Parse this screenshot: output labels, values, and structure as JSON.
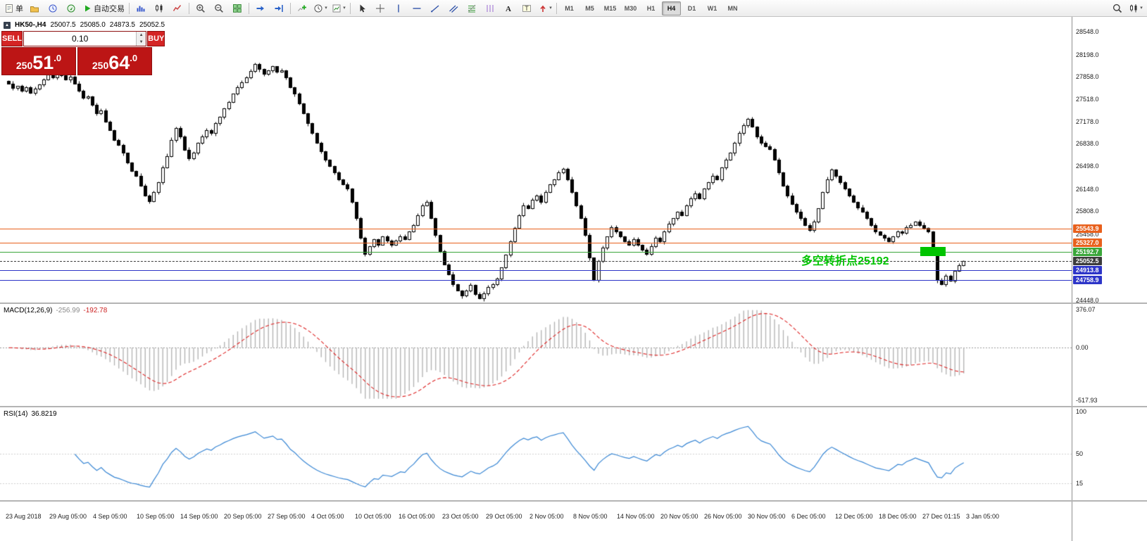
{
  "toolbar": {
    "items": [
      {
        "name": "new-order",
        "icon": "order",
        "label": "单"
      },
      {
        "name": "profiles",
        "icon": "profiles"
      },
      {
        "name": "market-watch",
        "icon": "market-watch"
      },
      {
        "name": "navigator",
        "icon": "navigator"
      },
      {
        "name": "autotrading",
        "icon": "play",
        "label": "自动交易"
      },
      {
        "sep": true
      },
      {
        "name": "bar-chart",
        "icon": "bars"
      },
      {
        "name": "candlestick-chart",
        "icon": "candles"
      },
      {
        "name": "line-chart",
        "icon": "line"
      },
      {
        "sep": true
      },
      {
        "name": "zoom-in",
        "icon": "zoom-in"
      },
      {
        "name": "zoom-out",
        "icon": "zoom-out"
      },
      {
        "name": "tile-windows",
        "icon": "tile"
      },
      {
        "sep": true
      },
      {
        "name": "auto-scroll",
        "icon": "auto-scroll"
      },
      {
        "name": "chart-shift",
        "icon": "chart-shift"
      },
      {
        "sep": true
      },
      {
        "name": "indicators-list",
        "icon": "indicator-add"
      },
      {
        "name": "periods",
        "icon": "clock",
        "dropdown": true
      },
      {
        "name": "templates",
        "icon": "template",
        "dropdown": true
      },
      {
        "sep": true
      },
      {
        "name": "cursor",
        "icon": "cursor"
      },
      {
        "name": "crosshair",
        "icon": "crosshair"
      },
      {
        "name": "vertical-line",
        "icon": "vline"
      },
      {
        "name": "horizontal-line",
        "icon": "hline"
      },
      {
        "name": "trendline",
        "icon": "trendline"
      },
      {
        "name": "equidistant-channel",
        "icon": "channel"
      },
      {
        "name": "fibonacci-retracement",
        "icon": "fibonacci"
      },
      {
        "name": "cycle-lines",
        "icon": "cycles"
      },
      {
        "name": "text",
        "icon": "text-a"
      },
      {
        "name": "text-label",
        "icon": "text-t"
      },
      {
        "name": "arrow-objects",
        "icon": "arrows",
        "dropdown": true
      },
      {
        "sep": true
      }
    ],
    "timeframes": [
      "M1",
      "M5",
      "M15",
      "M30",
      "H1",
      "H4",
      "D1",
      "W1",
      "MN"
    ],
    "active_timeframe": "H4",
    "right_items": [
      {
        "name": "search",
        "icon": "search"
      },
      {
        "name": "chart-window",
        "icon": "candles",
        "dropdown": true
      }
    ]
  },
  "chart_header": {
    "symbol": "HK50-,H4",
    "open": "25007.5",
    "high": "25085.0",
    "low": "24873.5",
    "close": "25052.5"
  },
  "trade_panel": {
    "sell_label": "SELL",
    "buy_label": "BUY",
    "volume": "0.10",
    "sell_price_main": "250",
    "sell_price_big": "51",
    "sell_price_frac": ".0",
    "buy_price_main": "250",
    "buy_price_big": "64",
    "buy_price_frac": ".0"
  },
  "price_axis": {
    "range": {
      "max": 28775,
      "min": 24416
    },
    "labels": [
      {
        "text": "28548.0",
        "value": 28548
      },
      {
        "text": "28198.0",
        "value": 28198
      },
      {
        "text": "27858.0",
        "value": 27858
      },
      {
        "text": "27518.0",
        "value": 27518
      },
      {
        "text": "27178.0",
        "value": 27178
      },
      {
        "text": "26838.0",
        "value": 26838
      },
      {
        "text": "26498.0",
        "value": 26498
      },
      {
        "text": "26148.0",
        "value": 26148
      },
      {
        "text": "25808.0",
        "value": 25808
      },
      {
        "text": "25458.0",
        "value": 25458
      },
      {
        "text": "24448.0",
        "value": 24448
      }
    ]
  },
  "levels": [
    {
      "label": "25543.9",
      "value": 25543.9,
      "color": "#e8601c",
      "style": "solid"
    },
    {
      "label": "25327.0",
      "value": 25327.0,
      "color": "#e8601c",
      "style": "solid"
    },
    {
      "label": "25192.7",
      "value": 25192.7,
      "color": "#3aa63a",
      "style": "solid"
    },
    {
      "label": "25052.5",
      "value": 25052.5,
      "color": "#3c3c3c",
      "style": "dashed",
      "current": true
    },
    {
      "label": "24913.8",
      "value": 24913.8,
      "color": "#2d35c8",
      "style": "solid"
    },
    {
      "label": "24758.9",
      "value": 24758.9,
      "color": "#2d35c8",
      "style": "solid"
    }
  ],
  "annotation": {
    "text": "多空转折点25192",
    "color": "#00c400"
  },
  "indicators": {
    "macd": {
      "label": "MACD(12,26,9)",
      "value1": "-256.99",
      "value2": "-192.78",
      "axis": [
        {
          "text": "376.07",
          "value": 376.07
        },
        {
          "text": "0.00",
          "value": 0
        },
        {
          "text": "-517.93",
          "value": -517.93
        }
      ]
    },
    "rsi": {
      "label": "RSI(14)",
      "value": "36.8219",
      "axis": [
        {
          "text": "100",
          "value": 100
        },
        {
          "text": "50",
          "value": 50
        },
        {
          "text": "15",
          "value": 15
        }
      ]
    }
  },
  "time_axis": [
    "23 Aug 2018",
    "29 Aug 05:00",
    "4 Sep 05:00",
    "10 Sep 05:00",
    "14 Sep 05:00",
    "20 Sep 05:00",
    "27 Sep 05:00",
    "4 Oct 05:00",
    "10 Oct 05:00",
    "16 Oct 05:00",
    "23 Oct 05:00",
    "29 Oct 05:00",
    "2 Nov 05:00",
    "8 Nov 05:00",
    "14 Nov 05:00",
    "20 Nov 05:00",
    "26 Nov 05:00",
    "30 Nov 05:00",
    "6 Dec 05:00",
    "12 Dec 05:00",
    "18 Dec 05:00",
    "27 Dec 01:15",
    "3 Jan 05:00"
  ],
  "chart_data": {
    "type": "candlestick",
    "symbol": "HK50-",
    "timeframe": "H4",
    "title": "HK50-,H4",
    "ohlc_current": {
      "open": 25007.5,
      "high": 25085.0,
      "low": 24873.5,
      "close": 25052.5
    },
    "ylim": [
      24448,
      28548
    ],
    "grid": false,
    "closes": [
      27760,
      27690,
      27720,
      27650,
      27700,
      27620,
      27680,
      27740,
      27820,
      27890,
      27850,
      27920,
      27880,
      27820,
      27860,
      27760,
      27650,
      27540,
      27560,
      27430,
      27300,
      27350,
      27180,
      27050,
      26900,
      26820,
      26700,
      26550,
      26420,
      26350,
      26200,
      26050,
      25960,
      26100,
      26250,
      26480,
      26650,
      26900,
      27080,
      26950,
      26750,
      26620,
      26700,
      26850,
      26950,
      27050,
      27000,
      27150,
      27250,
      27380,
      27480,
      27600,
      27700,
      27780,
      27850,
      27950,
      28060,
      27980,
      27900,
      27960,
      28020,
      27940,
      27960,
      27850,
      27700,
      27600,
      27450,
      27300,
      27150,
      27000,
      26850,
      26720,
      26600,
      26500,
      26400,
      26300,
      26220,
      26150,
      25950,
      25700,
      25400,
      25160,
      25280,
      25380,
      25300,
      25420,
      25360,
      25300,
      25360,
      25420,
      25380,
      25500,
      25600,
      25750,
      25900,
      25950,
      25700,
      25450,
      25200,
      25000,
      24850,
      24700,
      24600,
      24520,
      24600,
      24680,
      24550,
      24480,
      24560,
      24650,
      24700,
      24780,
      24950,
      25150,
      25350,
      25550,
      25750,
      25900,
      25850,
      25980,
      26050,
      25950,
      26100,
      26220,
      26300,
      26400,
      26460,
      26300,
      26100,
      25900,
      25700,
      25450,
      25100,
      24760,
      25050,
      25250,
      25420,
      25560,
      25500,
      25420,
      25350,
      25300,
      25380,
      25300,
      25220,
      25160,
      25280,
      25400,
      25350,
      25500,
      25620,
      25700,
      25800,
      25750,
      25900,
      26000,
      26080,
      26000,
      26150,
      26250,
      26350,
      26300,
      26480,
      26600,
      26700,
      26850,
      27000,
      27120,
      27220,
      27100,
      26950,
      26850,
      26800,
      26760,
      26600,
      26400,
      26200,
      26050,
      25920,
      25800,
      25700,
      25600,
      25520,
      25650,
      25850,
      26100,
      26300,
      26440,
      26350,
      26250,
      26150,
      26050,
      25950,
      25870,
      25800,
      25700,
      25600,
      25500,
      25450,
      25400,
      25350,
      25420,
      25500,
      25480,
      25560,
      25600,
      25650,
      25600,
      25550,
      25500,
      25200,
      24760,
      24700,
      24820,
      24750,
      24900,
      24980,
      25052.5
    ],
    "horizontal_levels": [
      25543.9,
      25327.0,
      25192.7,
      25052.5,
      24913.8,
      24758.9
    ],
    "indicators": {
      "macd": {
        "fast": 12,
        "slow": 26,
        "signal": 9,
        "last_macd": -256.99,
        "last_signal": -192.78,
        "axis_range": [
          -517.93,
          376.07
        ]
      },
      "rsi": {
        "period": 14,
        "last_value": 36.8219,
        "axis_range": [
          0,
          100
        ]
      }
    }
  }
}
